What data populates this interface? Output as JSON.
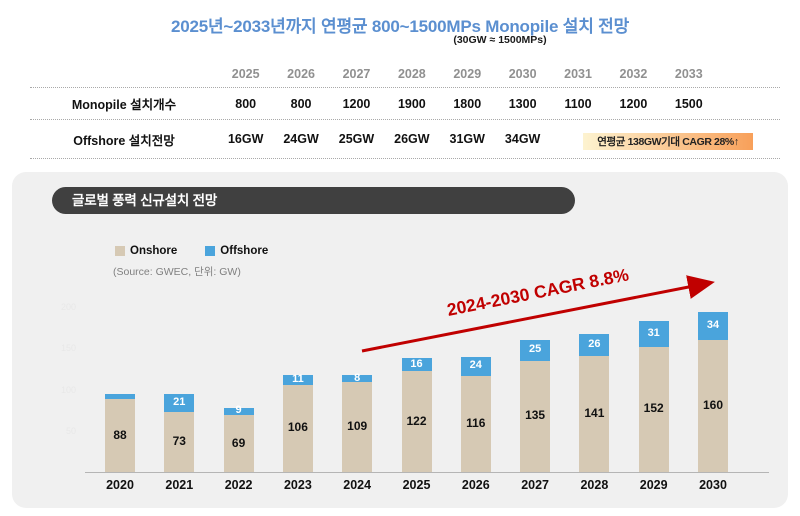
{
  "colors": {
    "title_blue": "#5b8fd0",
    "pill_bg": "#404040",
    "panel_bg": "#f0f0f0",
    "annotation_red": "#c00000",
    "note_arrow_gradient": [
      "#fdf3d0",
      "#f8a05a"
    ],
    "note_arrow_head": "#f89a58"
  },
  "chart_data": [
    {
      "type": "table",
      "title": "2025년~2033년까지 연평균 800~1500MPs  Monopile 설치 전망",
      "subtitle": "(30GW ≈ 1500MPs)",
      "columns": [
        "2025",
        "2026",
        "2027",
        "2028",
        "2029",
        "2030",
        "2031",
        "2032",
        "2033"
      ],
      "rows": [
        {
          "label": "Monopile 설치개수",
          "values": [
            "800",
            "800",
            "1200",
            "1900",
            "1800",
            "1300",
            "1100",
            "1200",
            "1500"
          ]
        },
        {
          "label": "Offshore 설치전망",
          "values": [
            "16GW",
            "24GW",
            "25GW",
            "26GW",
            "31GW",
            "34GW",
            null,
            null,
            null
          ],
          "note": "연평균 138GW기대 CAGR 28%↑"
        }
      ]
    },
    {
      "type": "bar",
      "stacked": true,
      "title": "글로벌 풍력 신규설치 전망",
      "source": "(Source: GWEC, 단위: GW)",
      "categories": [
        "2020",
        "2021",
        "2022",
        "2023",
        "2024",
        "2025",
        "2026",
        "2027",
        "2028",
        "2029",
        "2030"
      ],
      "series": [
        {
          "name": "Onshore",
          "color": "#d6c9b4",
          "values": [
            88,
            73,
            69,
            106,
            109,
            122,
            116,
            135,
            141,
            152,
            160
          ],
          "labels": [
            "88",
            "73",
            "69",
            "106",
            "109",
            "122",
            "116",
            "135",
            "141",
            "152",
            "160"
          ]
        },
        {
          "name": "Offshore",
          "color": "#4aa4dc",
          "values": [
            7,
            21,
            9,
            11,
            8,
            16,
            24,
            25,
            26,
            31,
            34
          ],
          "labels": [
            "",
            "21",
            "9",
            "11",
            "8",
            "16",
            "24",
            "25",
            "26",
            "31",
            "34"
          ]
        }
      ],
      "annotation": "2024-2030 CAGR 8.8%",
      "y_ticks": [
        50,
        100,
        150,
        200
      ],
      "ylim": [
        0,
        210
      ],
      "grid": false,
      "legend_position": "top-left"
    }
  ]
}
